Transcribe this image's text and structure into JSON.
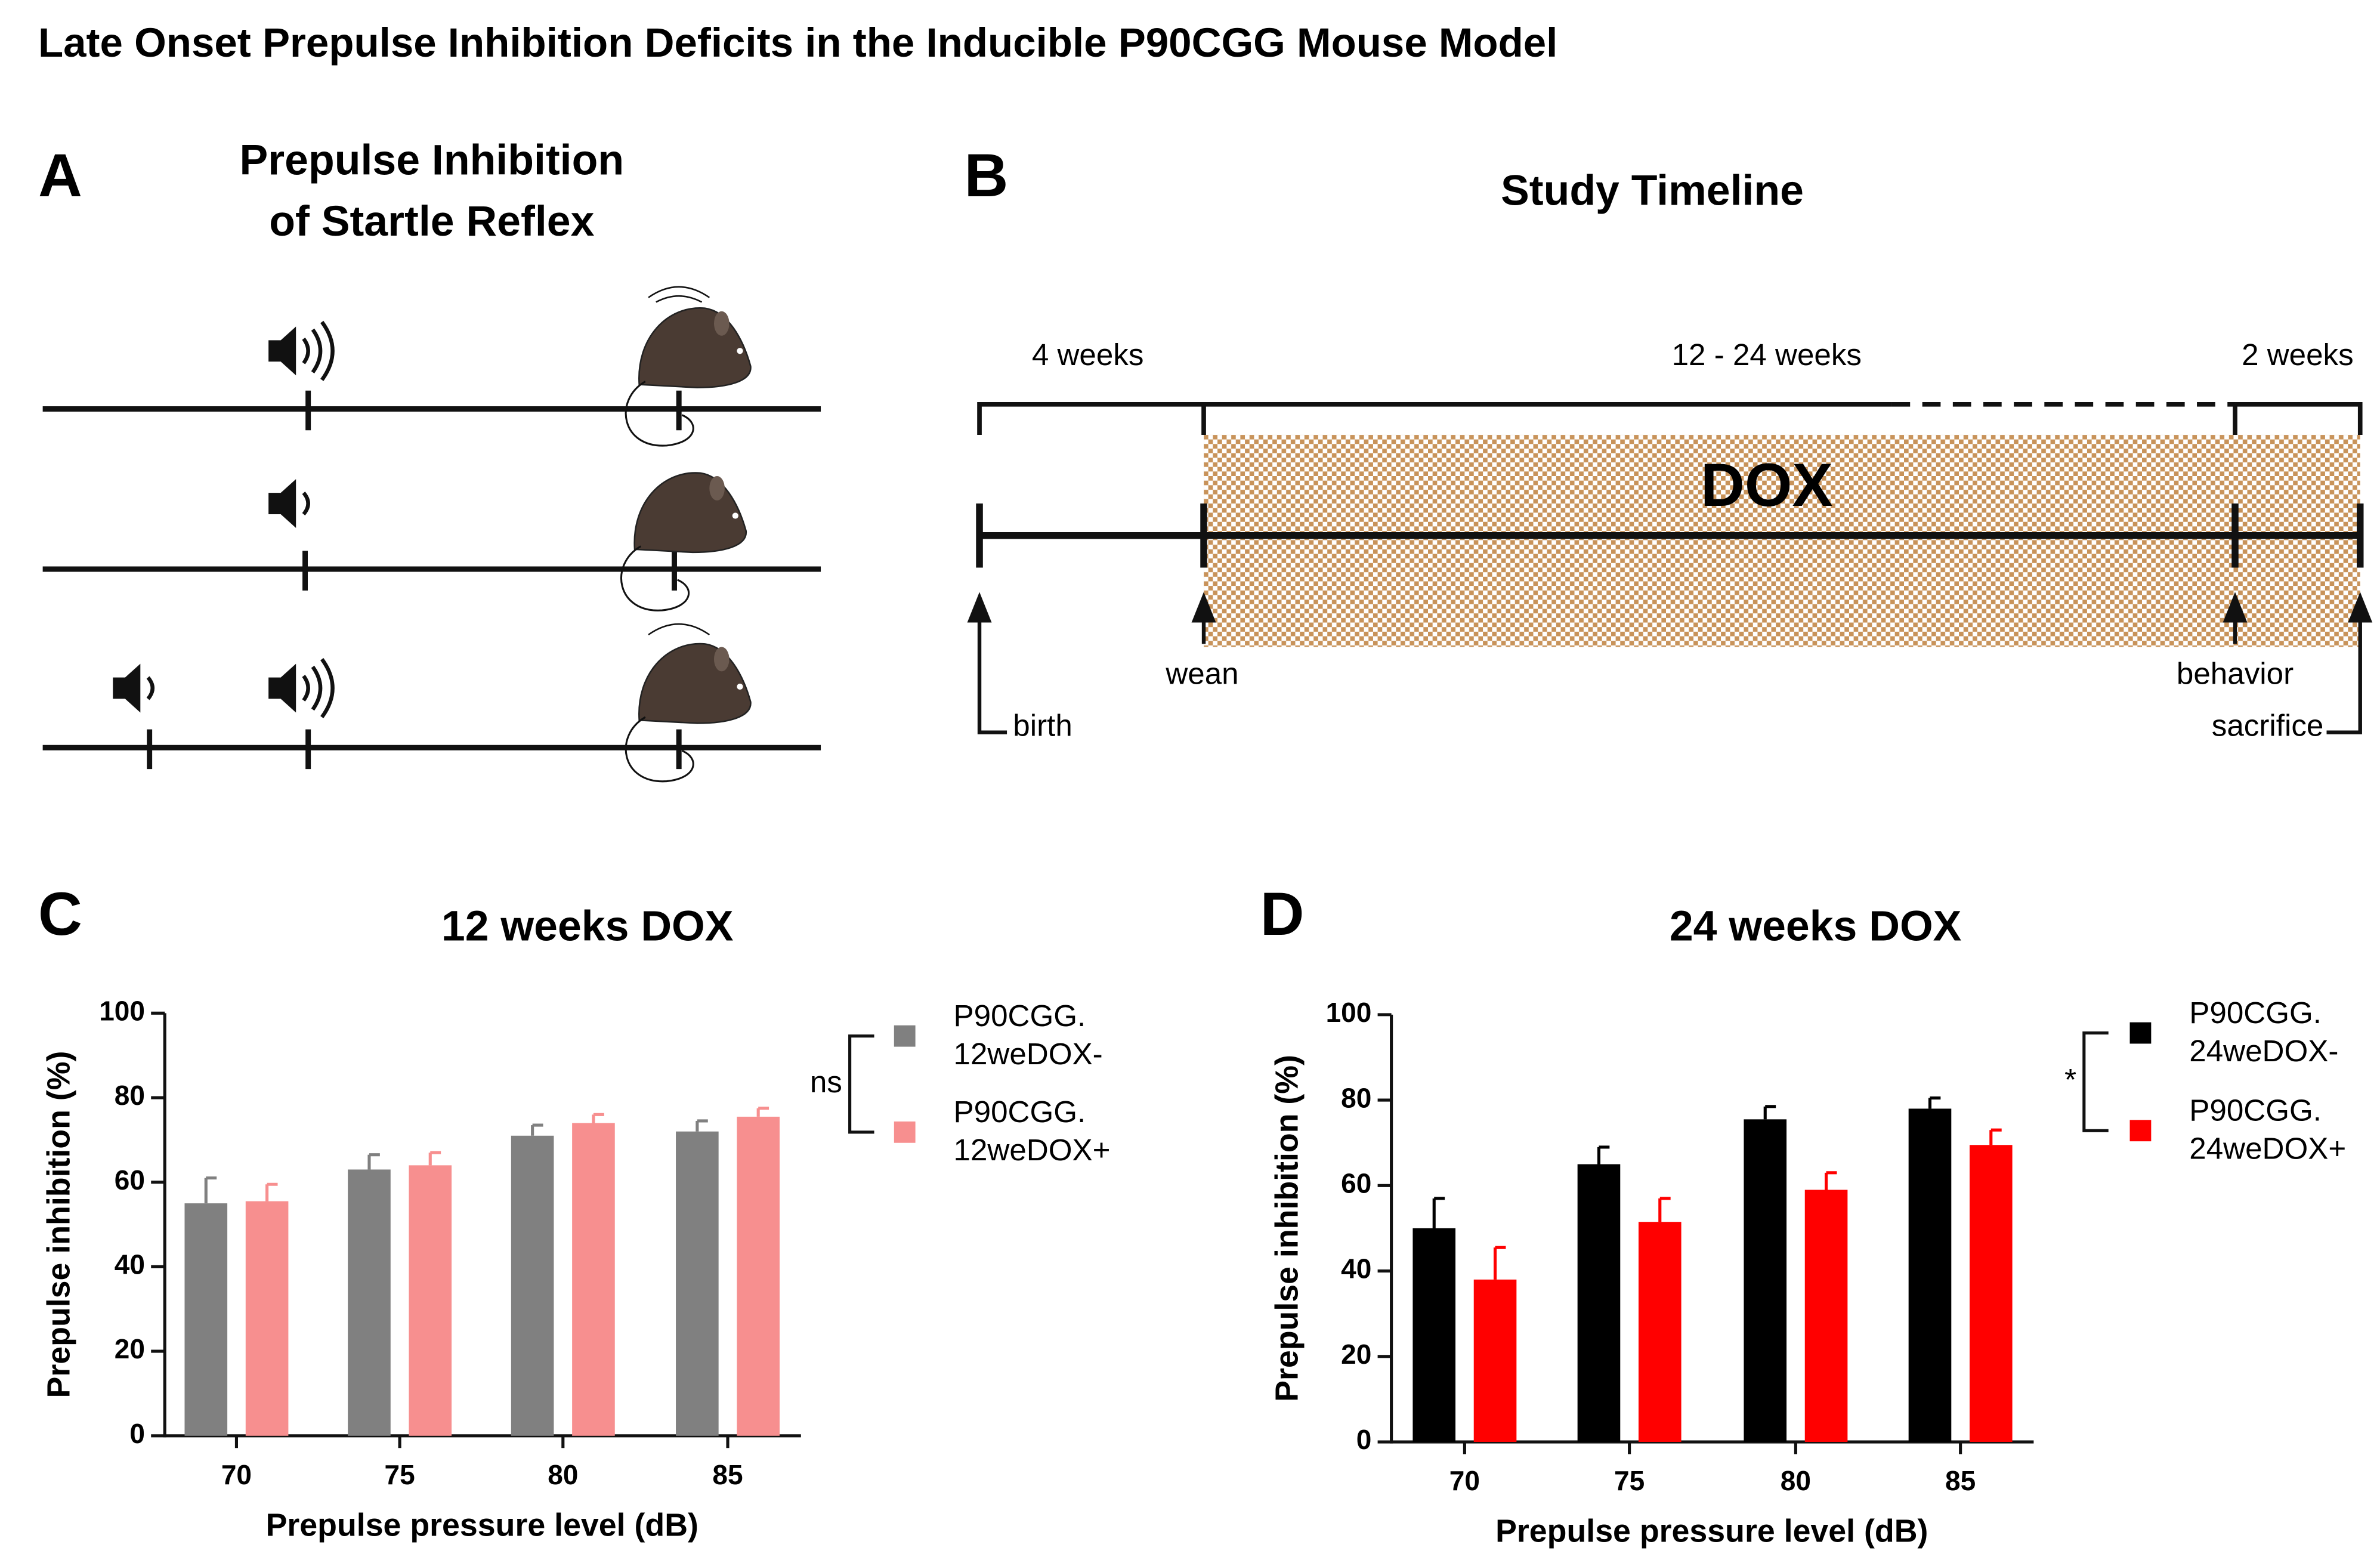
{
  "title": "Late Onset Prepulse Inhibition Deficits in the Inducible P90CGG Mouse Model",
  "panel_a": {
    "letter": "A",
    "title_lines": [
      "Prepulse Inhibition",
      "of Startle Reflex"
    ]
  },
  "panel_b": {
    "letter": "B",
    "title": "Study Timeline",
    "periods": [
      "4 weeks",
      "12 - 24 weeks",
      "2 weeks"
    ],
    "treatment": "DOX",
    "events": [
      "birth",
      "wean",
      "behavior",
      "sacrifice"
    ]
  },
  "chart_data": [
    {
      "type": "bar",
      "letter": "C",
      "title": "12 weeks DOX",
      "x_label": "Prepulse pressure level (dB)",
      "y_label": "Prepulse inhibition (%)",
      "categories": [
        "70",
        "75",
        "80",
        "85"
      ],
      "series": [
        {
          "name": "P90CGG. 12weDOX-",
          "color": "#808080",
          "values": [
            55,
            63,
            71,
            72
          ],
          "errors": [
            6,
            3.5,
            2.5,
            2.5
          ]
        },
        {
          "name": "P90CGG. 12weDOX+",
          "color": "#f78f8f",
          "values": [
            55.5,
            64,
            74,
            75.5
          ],
          "errors": [
            4,
            3,
            2,
            2
          ]
        }
      ],
      "significance": "ns",
      "ylim": [
        0,
        100
      ],
      "yticks": [
        0,
        20,
        40,
        60,
        80,
        100
      ]
    },
    {
      "type": "bar",
      "letter": "D",
      "title": "24 weeks DOX",
      "x_label": "Prepulse pressure level (dB)",
      "y_label": "Prepulse inhibition (%)",
      "categories": [
        "70",
        "75",
        "80",
        "85"
      ],
      "series": [
        {
          "name": "P90CGG. 24weDOX-",
          "color": "#000000",
          "values": [
            50,
            65,
            75.5,
            78
          ],
          "errors": [
            7,
            4,
            3,
            2.5
          ]
        },
        {
          "name": "P90CGG. 24weDOX+",
          "color": "#ff0000",
          "values": [
            38,
            51.5,
            59,
            69.5
          ],
          "errors": [
            7.5,
            5.5,
            4,
            3.5
          ]
        }
      ],
      "significance": "*",
      "ylim": [
        0,
        100
      ],
      "yticks": [
        0,
        20,
        40,
        60,
        80,
        100
      ]
    }
  ]
}
